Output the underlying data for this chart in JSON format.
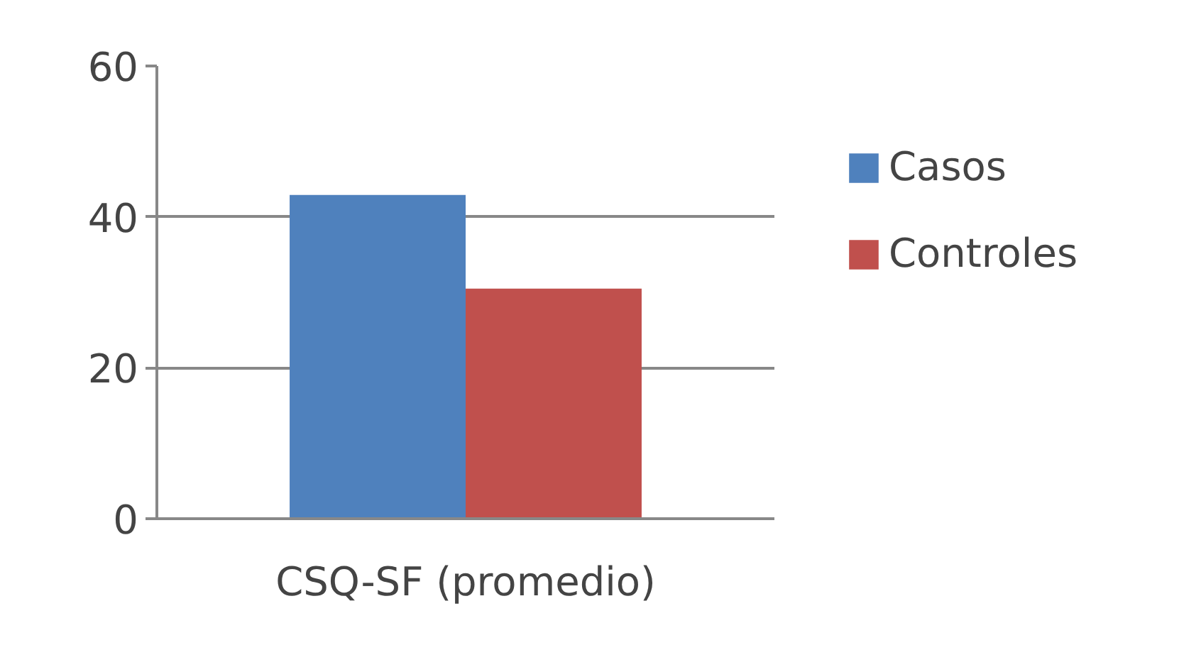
{
  "chart_data": {
    "type": "bar",
    "categories": [
      "CSQ-SF (promedio)"
    ],
    "series": [
      {
        "name": "Casos",
        "color": "#4f81bd",
        "values": [
          42.9
        ]
      },
      {
        "name": "Controles",
        "color": "#c0504d",
        "values": [
          30.5
        ]
      }
    ],
    "ylim": [
      0,
      60
    ],
    "yticks": [
      0,
      20,
      40,
      60
    ],
    "grid": "y",
    "legend": "right"
  }
}
